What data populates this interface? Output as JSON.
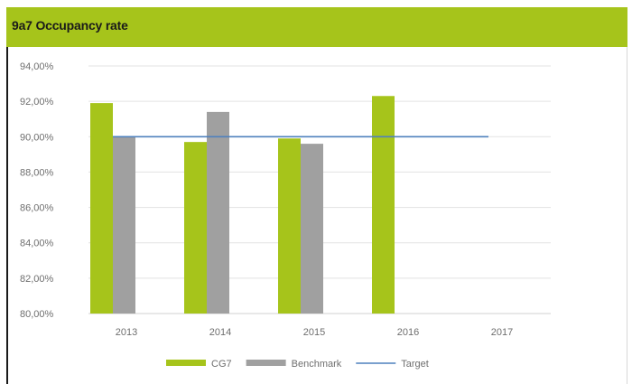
{
  "chart_data": {
    "type": "bar",
    "title": "9a7 Occupancy rate",
    "categories": [
      "2013",
      "2014",
      "2015",
      "2016",
      "2017"
    ],
    "series": [
      {
        "name": "CG7",
        "type": "bar",
        "color": "#a6c41b",
        "values": [
          91.9,
          89.7,
          89.9,
          92.3,
          null
        ]
      },
      {
        "name": "Benchmark",
        "type": "bar",
        "color": "#a0a0a0",
        "values": [
          90.0,
          91.4,
          89.6,
          null,
          null
        ]
      },
      {
        "name": "Target",
        "type": "line",
        "color": "#4f81bd",
        "values": [
          90.0,
          90.0,
          90.0,
          90.0,
          90.0
        ]
      }
    ],
    "y_ticks": [
      "80,00%",
      "82,00%",
      "84,00%",
      "86,00%",
      "88,00%",
      "90,00%",
      "92,00%",
      "94,00%"
    ],
    "ylim": [
      80,
      94
    ],
    "grid": true,
    "legend": "bottom"
  }
}
